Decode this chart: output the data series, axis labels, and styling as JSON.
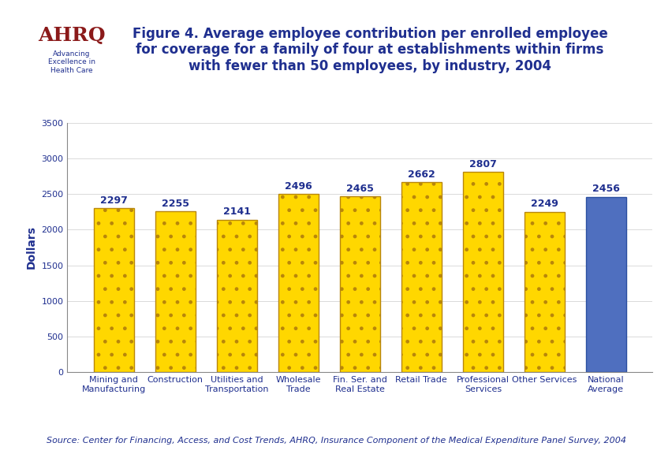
{
  "categories": [
    "Mining and\nManufacturing",
    "Construction",
    "Utilities and\nTransportation",
    "Wholesale\nTrade",
    "Fin. Ser. and\nReal Estate",
    "Retail Trade",
    "Professional\nServices",
    "Other Services",
    "National\nAverage"
  ],
  "values": [
    2297,
    2255,
    2141,
    2496,
    2465,
    2662,
    2807,
    2249,
    2456
  ],
  "bar_colors": [
    "#FFD700",
    "#FFD700",
    "#FFD700",
    "#FFD700",
    "#FFD700",
    "#FFD700",
    "#FFD700",
    "#FFD700",
    "#4F6FBF"
  ],
  "bar_edge_color": "#B8860B",
  "last_bar_edge_color": "#2B4FA0",
  "title_line1": "Figure 4. Average employee contribution per enrolled employee",
  "title_line2": "for coverage for a family of four at establishments within firms",
  "title_line3": "with fewer than 50 employees, by industry, 2004",
  "ylabel": "Dollars",
  "ylim": [
    0,
    3500
  ],
  "yticks": [
    0,
    500,
    1000,
    1500,
    2000,
    2500,
    3000,
    3500
  ],
  "source_text": "Source: Center for Financing, Access, and Cost Trends, AHRQ, Insurance Component of the Medical Expenditure Panel Survey, 2004",
  "title_color": "#1F2F8F",
  "ylabel_color": "#1F2F8F",
  "tick_label_color": "#1F2F8F",
  "value_label_color": "#1F2F8F",
  "source_color": "#1F2F8F",
  "background_color": "#FFFFFF",
  "separator_line_color": "#1F2F8F",
  "title_fontsize": 12,
  "value_fontsize": 9,
  "tick_fontsize": 8,
  "source_fontsize": 8
}
